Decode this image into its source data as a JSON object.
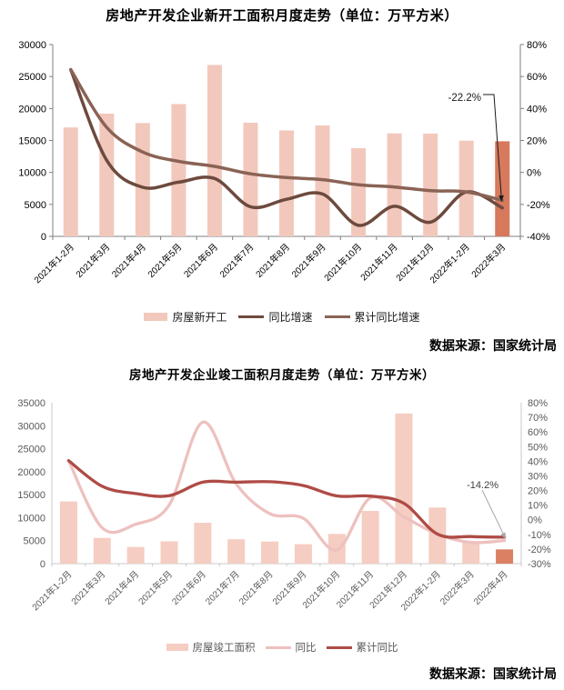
{
  "chart_data": [
    {
      "id": "new-starts-chart",
      "type": "bar+line",
      "title": "房地产开发企业新开工面积月度走势（单位：万平方米）",
      "source": "数据来源：国家统计局",
      "categories": [
        "2021年1-2月",
        "2021年3月",
        "2021年4月",
        "2021年5月",
        "2021年6月",
        "2021年7月",
        "2021年8月",
        "2021年9月",
        "2021年10月",
        "2021年11月",
        "2021年12月",
        "2022年1-2月",
        "2022年3月"
      ],
      "series": [
        {
          "name": "房屋新开工",
          "type": "bar",
          "axis": "left",
          "color": "#F2C8BC",
          "last_value_color": "#D6795C",
          "values": [
            17037,
            19193,
            17725,
            20697,
            26809,
            17775,
            16566,
            17343,
            13792,
            16107,
            16075,
            14967,
            14871
          ]
        },
        {
          "name": "同比增速",
          "type": "line",
          "axis": "right",
          "color": "#6D4A3E",
          "values": [
            64.3,
            7.6,
            -9.3,
            -6.1,
            -3.8,
            -21.5,
            -16.8,
            -13.5,
            -33.1,
            -21.2,
            -31.1,
            -12.2,
            -22.2
          ]
        },
        {
          "name": "累计同比增速",
          "type": "line",
          "axis": "right",
          "color": "#8A6355",
          "values": [
            64.3,
            28.2,
            12.8,
            6.9,
            3.8,
            -0.9,
            -3.2,
            -4.5,
            -7.7,
            -9.1,
            -11.4,
            -12.2,
            -17.5
          ]
        }
      ],
      "left_axis": {
        "min": 0,
        "max": 30000,
        "step": 5000,
        "ticks": [
          "30000",
          "25000",
          "20000",
          "15000",
          "10000",
          "5000",
          "0"
        ]
      },
      "right_axis": {
        "min": -40,
        "max": 80,
        "step": 20,
        "ticks": [
          "80%",
          "60%",
          "40%",
          "20%",
          "0%",
          "-20%",
          "-40%"
        ]
      },
      "annotation": {
        "text": "-22.2%",
        "target_series": "同比增速",
        "target_category": "2022年3月"
      },
      "label_color": "#000000",
      "axis_color": "#7F7F7F",
      "legend_position": "bottom",
      "grid": false
    },
    {
      "id": "completions-chart",
      "type": "bar+line",
      "title": "房地产开发企业竣工面积月度走势（单位：万平方米）",
      "source": "数据来源：国家统计局",
      "categories": [
        "2021年1-2月",
        "2021年3月",
        "2021年4月",
        "2021年5月",
        "2021年6月",
        "2021年7月",
        "2021年8月",
        "2021年9月",
        "2021年10月",
        "2021年11月",
        "2021年12月",
        "2022年1-2月",
        "2022年3月",
        "2022年4月"
      ],
      "series": [
        {
          "name": "房屋竣工面积",
          "type": "bar",
          "axis": "left",
          "color": "#F5CDC2",
          "last_value_color": "#DC8064",
          "values": [
            13525,
            5597,
            3614,
            4847,
            8894,
            5301,
            4808,
            4224,
            6476,
            11464,
            32658,
            12200,
            4729,
            3101
          ]
        },
        {
          "name": "同比",
          "type": "line",
          "axis": "right",
          "color": "#EDC1BE",
          "values": [
            40.4,
            -5.5,
            -3.1,
            10.1,
            66.7,
            24.5,
            4.2,
            1.0,
            -20.6,
            15.0,
            2.0,
            -9.8,
            -15.5,
            -14.2
          ]
        },
        {
          "name": "累计同比",
          "type": "line",
          "axis": "right",
          "color": "#AF4B46",
          "values": [
            40.4,
            22.9,
            17.9,
            16.4,
            25.7,
            25.7,
            26.0,
            23.4,
            16.3,
            16.2,
            11.2,
            -9.8,
            -11.5,
            -11.9
          ]
        }
      ],
      "left_axis": {
        "min": 0,
        "max": 35000,
        "step": 5000,
        "ticks": [
          "35000",
          "30000",
          "25000",
          "20000",
          "15000",
          "10000",
          "5000",
          "0"
        ]
      },
      "right_axis": {
        "min": -30,
        "max": 80,
        "step": 10,
        "ticks": [
          "80%",
          "70%",
          "60%",
          "50%",
          "40%",
          "30%",
          "20%",
          "10%",
          "0%",
          "-10%",
          "-20%",
          "-30%"
        ]
      },
      "annotation": {
        "text": "-14.2%",
        "target_series": "同比",
        "target_category": "2022年4月"
      },
      "label_color": "#595959",
      "axis_color": "#C9C9C9",
      "legend_position": "bottom",
      "grid": false
    }
  ]
}
